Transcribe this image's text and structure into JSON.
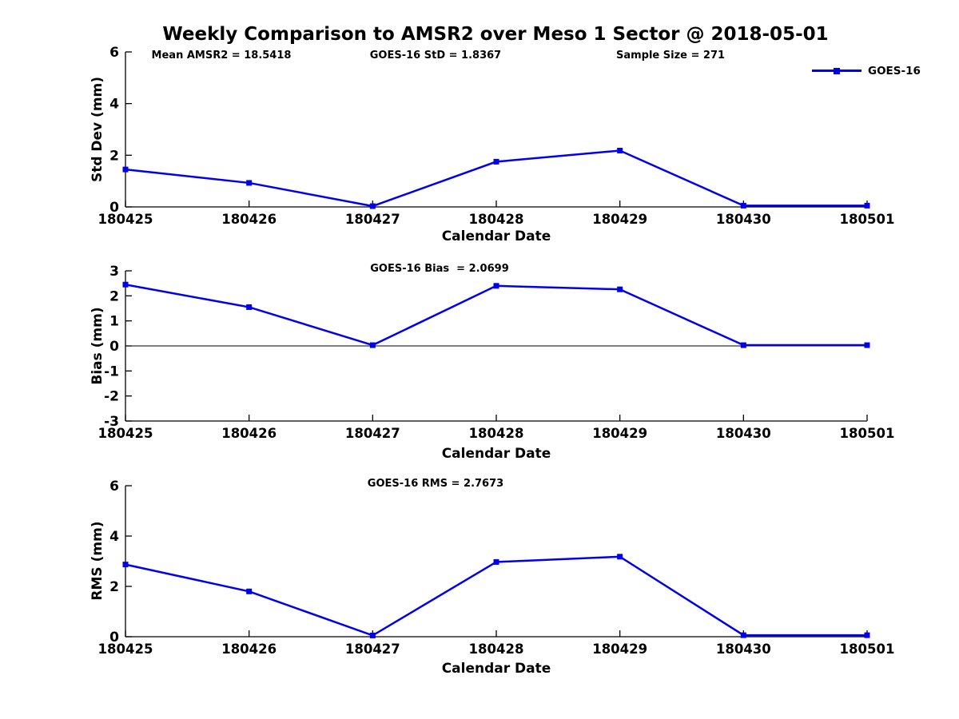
{
  "title": "Weekly Comparison to AMSR2 over Meso 1 Sector @ 2018-05-01",
  "colors": {
    "line": "#0000ee",
    "axis": "#000000",
    "text": "#000000",
    "zero_line": "#000000"
  },
  "chart_data": [
    {
      "id": "stddev",
      "type": "line",
      "categories": [
        "180425",
        "180426",
        "180427",
        "180428",
        "180429",
        "180430",
        "180501"
      ],
      "series": [
        {
          "name": "GOES-16",
          "values": [
            1.45,
            0.93,
            0.03,
            1.75,
            2.18,
            0.05,
            0.05
          ]
        }
      ],
      "ylabel": "Std Dev (mm)",
      "xlabel": "Calendar Date",
      "ylim": [
        0,
        6
      ],
      "yticks": [
        0,
        2,
        4,
        6
      ],
      "grid": false,
      "zero_line": false,
      "annotations": [
        "Mean AMSR2 = 18.5418",
        "GOES-16 StD = 1.8367",
        "Sample Size = 271"
      ],
      "legend": {
        "label": "GOES-16",
        "position": "top-right"
      }
    },
    {
      "id": "bias",
      "type": "line",
      "categories": [
        "180425",
        "180426",
        "180427",
        "180428",
        "180429",
        "180430",
        "180501"
      ],
      "series": [
        {
          "name": "GOES-16",
          "values": [
            2.45,
            1.55,
            0.03,
            2.4,
            2.26,
            0.03,
            0.03
          ]
        }
      ],
      "ylabel": "Bias (mm)",
      "xlabel": "Calendar Date",
      "ylim": [
        -3,
        3
      ],
      "yticks": [
        3,
        2,
        1,
        0,
        -1,
        -2,
        -3
      ],
      "grid": false,
      "zero_line": true,
      "annotations": [
        "GOES-16 Bias  = 2.0699"
      ]
    },
    {
      "id": "rms",
      "type": "line",
      "categories": [
        "180425",
        "180426",
        "180427",
        "180428",
        "180429",
        "180430",
        "180501"
      ],
      "series": [
        {
          "name": "GOES-16",
          "values": [
            2.87,
            1.8,
            0.05,
            2.97,
            3.18,
            0.06,
            0.06
          ]
        }
      ],
      "ylabel": "RMS (mm)",
      "xlabel": "Calendar Date",
      "ylim": [
        0,
        6
      ],
      "yticks": [
        0,
        2,
        4,
        6
      ],
      "grid": false,
      "zero_line": false,
      "annotations": [
        "GOES-16 RMS = 2.7673"
      ]
    }
  ]
}
